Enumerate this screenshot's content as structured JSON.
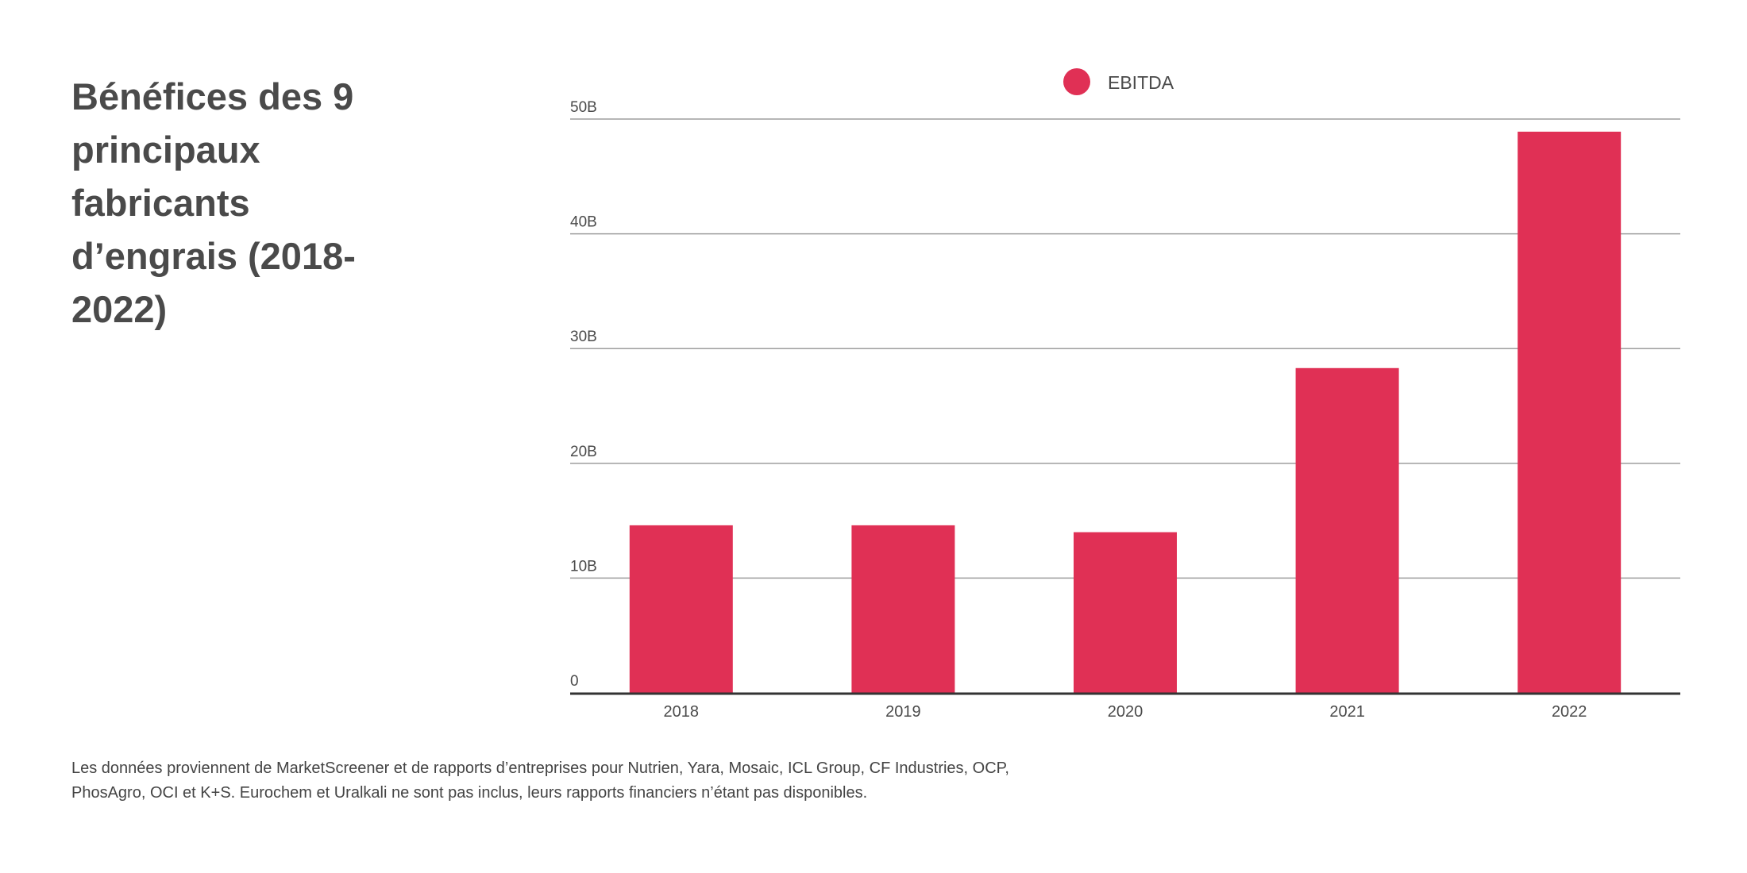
{
  "title": "Bénéfices des 9 principaux fabricants d’engrais (2018-2022)",
  "footnote": {
    "line1": "Les données proviennent de MarketScreener et de rapports d’entreprises pour Nutrien, Yara, Mosaic, ICL Group, CF Industries, OCP,",
    "line2": "PhosAgro, OCI et K+S. Eurochem et Uralkali ne sont pas inclus, leurs rapports financiers n’étant pas disponibles."
  },
  "colors": {
    "bar": "#e03055",
    "grid": "#9e9e9e",
    "axis": "#333333",
    "text": "#4a4a4a"
  },
  "chart_data": {
    "type": "bar",
    "categories": [
      "2018",
      "2019",
      "2020",
      "2021",
      "2022"
    ],
    "series": [
      {
        "name": "EBITDA",
        "values": [
          14.6,
          14.6,
          14.0,
          28.3,
          48.9
        ]
      }
    ],
    "ylim": [
      0,
      50
    ],
    "yticks": [
      0,
      10,
      20,
      30,
      40,
      50
    ],
    "ytick_labels": [
      "0",
      "10B",
      "20B",
      "30B",
      "40B",
      "50B"
    ],
    "xlabel": "",
    "ylabel": "",
    "grid": true,
    "legend_position": "top-center"
  }
}
